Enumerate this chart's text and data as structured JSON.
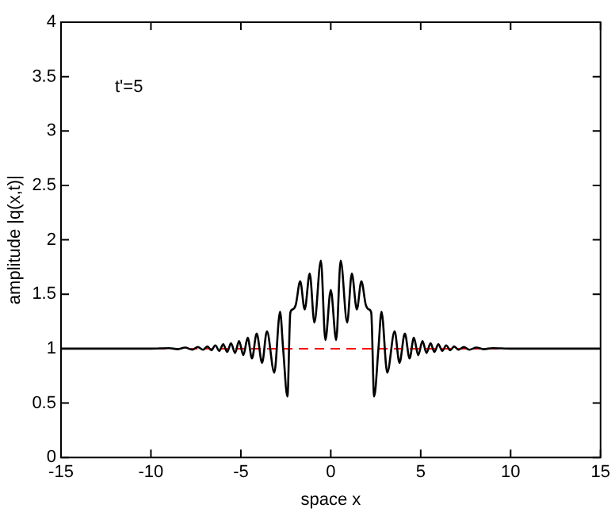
{
  "chart_data": {
    "type": "line",
    "xlabel": "space x",
    "ylabel": "amplitude |q(x,t)|",
    "annotations": [
      "t'=5"
    ],
    "x": [
      -15,
      -10,
      -9,
      -8.5,
      -8.1,
      -7.7,
      -7.4,
      -7.1,
      -6.86,
      -6.64,
      -6.42,
      -6.2,
      -5.98,
      -5.76,
      -5.55,
      -5.32,
      -5.1,
      -4.86,
      -4.62,
      -4.38,
      -4.12,
      -3.82,
      -3.55,
      -3.14,
      -2.82,
      -2.65,
      -2.41,
      -2.25,
      -2.12,
      -1.95,
      -1.7,
      -1.45,
      -1.17,
      -0.91,
      -0.55,
      -0.3,
      0,
      0.3,
      0.55,
      0.91,
      1.17,
      1.45,
      1.7,
      1.95,
      2.12,
      2.25,
      2.41,
      2.65,
      2.82,
      3.14,
      3.55,
      3.82,
      4.12,
      4.38,
      4.62,
      4.86,
      5.1,
      5.32,
      5.55,
      5.76,
      5.98,
      6.2,
      6.42,
      6.64,
      6.86,
      7.1,
      7.4,
      7.7,
      8.1,
      8.5,
      9,
      10,
      15
    ],
    "series": [
      {
        "color": "#000000",
        "values": [
          1,
          1,
          1.005,
          0.995,
          1.01,
          0.99,
          1.015,
          0.99,
          1.02,
          0.985,
          1.03,
          0.98,
          1.04,
          0.97,
          1.05,
          0.96,
          1.07,
          0.94,
          1.1,
          0.91,
          1.14,
          0.87,
          1.16,
          0.78,
          1.34,
          1.0,
          0.56,
          1.33,
          1.36,
          1.4,
          1.62,
          1.36,
          1.69,
          1.24,
          1.81,
          1.08,
          1.54,
          1.08,
          1.81,
          1.24,
          1.69,
          1.36,
          1.62,
          1.4,
          1.36,
          1.33,
          0.56,
          1.0,
          1.34,
          0.78,
          1.16,
          0.87,
          1.14,
          0.91,
          1.1,
          0.94,
          1.07,
          0.96,
          1.05,
          0.97,
          1.04,
          0.98,
          1.03,
          0.985,
          1.02,
          0.99,
          1.015,
          0.99,
          1.01,
          0.995,
          1.005,
          1,
          1
        ]
      }
    ],
    "ref_lines": [
      {
        "axis": "y",
        "value": 1,
        "color": "#ff0000",
        "line_style": "dashed"
      }
    ],
    "xlim": [
      -15,
      15
    ],
    "xticks": [
      -15,
      -10,
      -5,
      0,
      5,
      10,
      15
    ],
    "ylim": [
      0,
      4
    ],
    "yticks": [
      0,
      0.5,
      1,
      1.5,
      2,
      2.5,
      3,
      3.5,
      4
    ],
    "grid": false,
    "legend": false,
    "marker": "none",
    "line_style": "solid"
  }
}
